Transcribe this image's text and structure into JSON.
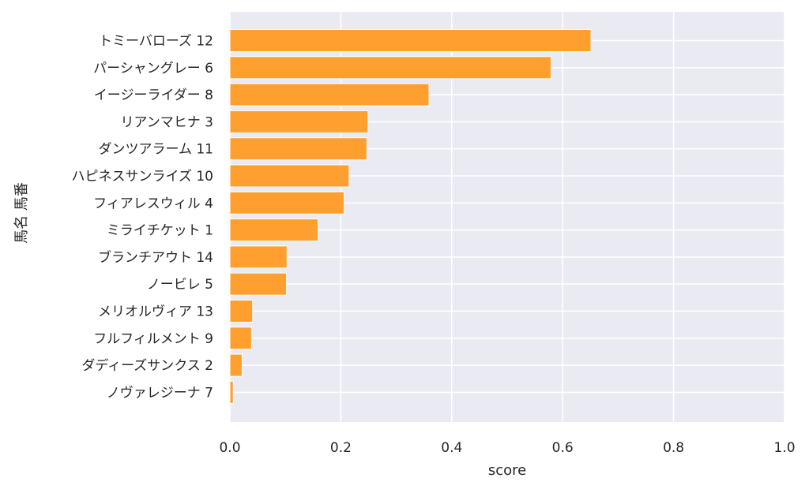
{
  "chart_data": {
    "type": "bar",
    "orientation": "horizontal",
    "categories": [
      "トミーバローズ 12",
      "パーシャングレー 6",
      "イージーライダー 8",
      "リアンマヒナ 3",
      "ダンツアラーム 11",
      "ハピネスサンライズ 10",
      "フィアレスウィル 4",
      "ミライチケット 1",
      "ブランチアウト 14",
      "ノービレ 5",
      "メリオルヴィア 13",
      "フルフィルメント 9",
      "ダディーズサンクス 2",
      "ノヴァレジーナ 7"
    ],
    "values": [
      0.651,
      0.579,
      0.359,
      0.249,
      0.247,
      0.215,
      0.206,
      0.159,
      0.103,
      0.102,
      0.041,
      0.039,
      0.022,
      0.006
    ],
    "xlabel": "score",
    "ylabel": "馬名 馬番",
    "xlim": [
      0,
      1.0
    ],
    "xticks": [
      "0.0",
      "0.2",
      "0.4",
      "0.6",
      "0.8",
      "1.0"
    ],
    "grid": true,
    "bar_color": "#ff9f2f",
    "background_color": "#eaeaf2",
    "grid_color": "#ffffff"
  }
}
